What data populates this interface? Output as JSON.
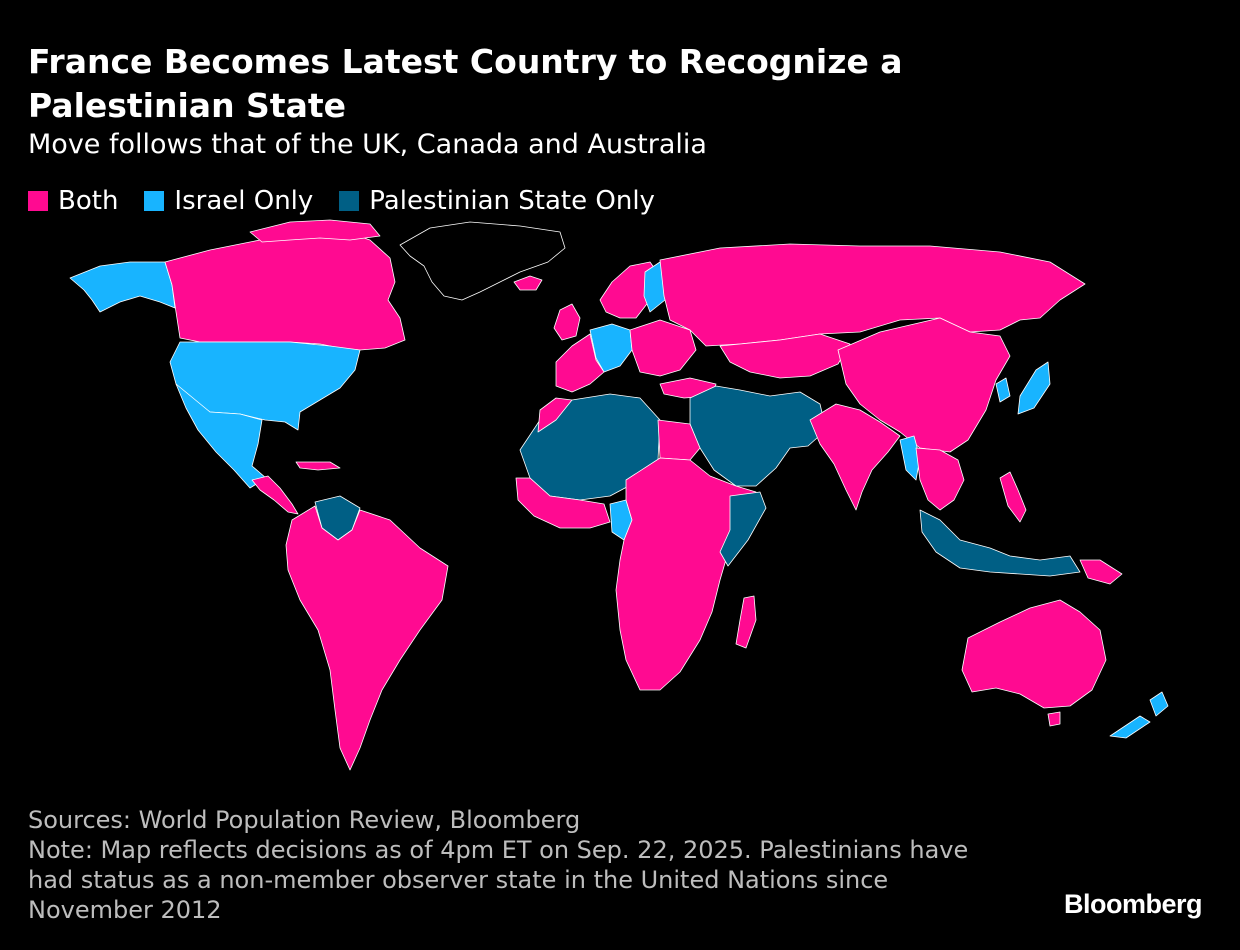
{
  "header": {
    "title": "France Becomes Latest Country to Recognize a Palestinian State",
    "subtitle": "Move follows that of the UK, Canada and Australia"
  },
  "legend": {
    "items": [
      {
        "label": "Both",
        "color": "#ff0a91"
      },
      {
        "label": "Israel Only",
        "color": "#18b4ff"
      },
      {
        "label": "Palestinian State Only",
        "color": "#005f85"
      }
    ]
  },
  "map": {
    "colors": {
      "both": "#ff0a91",
      "israel_only": "#18b4ff",
      "palestine_only": "#005f85",
      "neither": "#000000",
      "border": "#ffffff"
    }
  },
  "footer": {
    "sources": "Sources: World Population Review, Bloomberg",
    "note": "Note: Map reflects decisions as of 4pm ET on Sep. 22, 2025. Palestinians have had status as a non-member observer state in the United Nations since November 2012"
  },
  "brand": {
    "logo_text": "Bloomberg"
  }
}
